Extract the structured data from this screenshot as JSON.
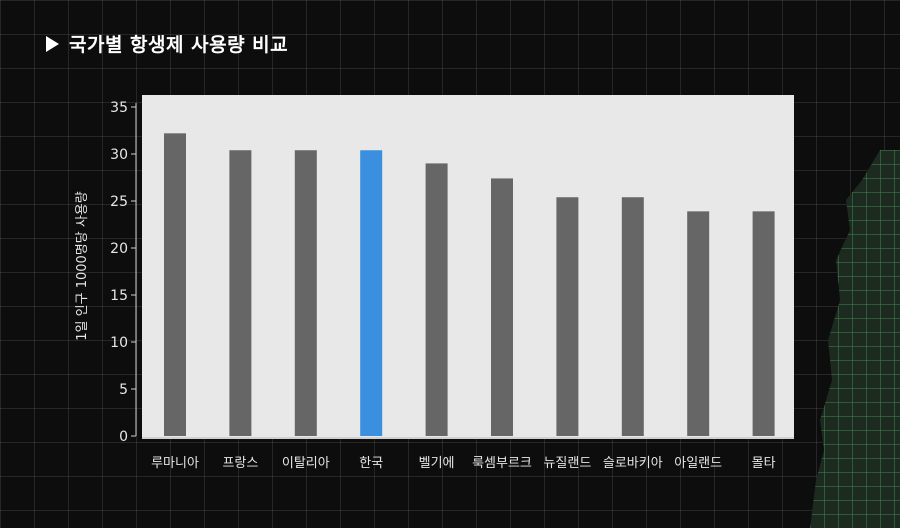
{
  "page": {
    "title": "국가별 항생제 사용량 비교"
  },
  "colors": {
    "default_bar": "#666666",
    "highlight_bar": "#3a8fde",
    "plot_background": "#e8e8e8"
  },
  "icons": {
    "title_marker": "play-triangle-icon"
  },
  "chart_data": {
    "type": "bar",
    "title": "",
    "xlabel": "",
    "ylabel": "1일 인구 1000명당 사용량",
    "categories": [
      "루마니아",
      "프랑스",
      "이탈리아",
      "한국",
      "벨기에",
      "룩셈부르크",
      "뉴질랜드",
      "슬로바키아",
      "아일랜드",
      "몰타"
    ],
    "values": [
      32.2,
      30.4,
      30.4,
      30.4,
      29.0,
      27.4,
      25.4,
      25.4,
      23.9,
      23.9
    ],
    "highlight": "한국",
    "ylim": [
      0,
      35
    ],
    "yticks": [
      0,
      5,
      10,
      15,
      20,
      25,
      30,
      35
    ],
    "grid": false,
    "legend": "none"
  }
}
